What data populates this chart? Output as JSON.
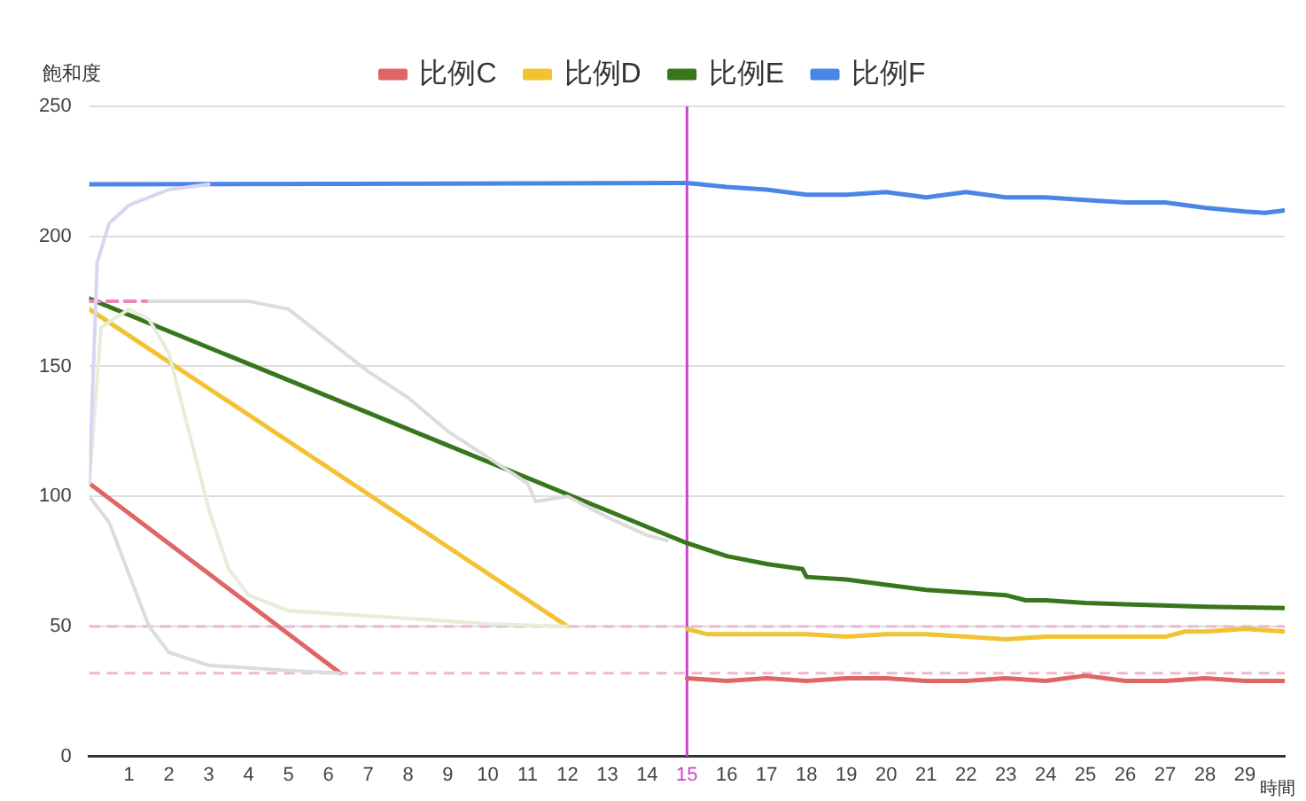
{
  "chart_data": {
    "type": "line",
    "ylabel": "飽和度",
    "xlabel": "時間",
    "xlim": [
      0,
      30
    ],
    "xticks": [
      1,
      2,
      3,
      4,
      5,
      6,
      7,
      8,
      9,
      10,
      11,
      12,
      13,
      14,
      15,
      16,
      17,
      18,
      19,
      20,
      21,
      22,
      23,
      24,
      25,
      26,
      27,
      28,
      29
    ],
    "ylim": [
      0,
      250
    ],
    "yticks": [
      0,
      50,
      100,
      150,
      200,
      250
    ],
    "grid": "y",
    "legend": "top",
    "marker": "none",
    "line_style": "solid",
    "ref_lines": [
      {
        "axis": "y",
        "value": 50,
        "color": "#e9b7cf",
        "line_style": "dashed"
      },
      {
        "axis": "y",
        "value": 32,
        "color": "#f0b8c8",
        "line_style": "dashed"
      },
      {
        "axis": "x",
        "value": 15,
        "color": "#cc44cc",
        "line_style": "solid"
      }
    ],
    "series": [
      {
        "color": "#d9d4f2",
        "x": [
          0,
          0.2,
          0.5,
          1,
          2,
          3
        ],
        "values": [
          105,
          190,
          205,
          212,
          218,
          220
        ]
      },
      {
        "color": "#dcdcdc",
        "x": [
          1.5,
          4,
          5,
          6,
          7,
          8,
          9,
          10,
          11,
          11.2,
          12,
          13,
          14,
          14.5
        ],
        "values": [
          175,
          175,
          172,
          160,
          148,
          138,
          125,
          115,
          105,
          98,
          100,
          92,
          85,
          83
        ]
      },
      {
        "color": "#e4eed9",
        "x": [
          0,
          0.3,
          1,
          1.5,
          2,
          2.5,
          3,
          3.5,
          4,
          5,
          6,
          8,
          10,
          12
        ],
        "values": [
          105,
          165,
          172,
          168,
          155,
          125,
          95,
          72,
          62,
          56,
          55,
          53,
          51,
          50
        ]
      },
      {
        "color": "#dcdcdc",
        "x": [
          0,
          0.5,
          1,
          1.5,
          2,
          3,
          5,
          6.3
        ],
        "values": [
          100,
          90,
          70,
          50,
          40,
          35,
          33,
          32
        ]
      },
      {
        "color": "#e986b8",
        "x": [
          0,
          1.5
        ],
        "values": [
          175,
          175
        ],
        "line_style": "dashed"
      },
      {
        "name": "比例C",
        "color": "#e06666",
        "x": [
          0,
          6.3,
          10,
          15,
          16,
          17,
          18,
          19,
          20,
          21,
          22,
          23,
          24,
          25,
          26,
          27,
          28,
          29,
          30
        ],
        "values": [
          105,
          32,
          null,
          30,
          29,
          30,
          29,
          30,
          30,
          29,
          29,
          30,
          29,
          31,
          29,
          29,
          30,
          29,
          29
        ]
      },
      {
        "name": "比例D",
        "color": "#f1c232",
        "x": [
          0,
          12,
          13.5,
          15,
          15.5,
          17,
          18,
          19,
          20,
          21,
          22,
          23,
          24,
          25,
          26,
          27,
          27.5,
          28,
          29,
          30
        ],
        "values": [
          172,
          50,
          null,
          49,
          47,
          47,
          47,
          46,
          47,
          47,
          46,
          45,
          46,
          46,
          46,
          46,
          48,
          48,
          49,
          48
        ]
      },
      {
        "name": "比例E",
        "color": "#38761d",
        "x": [
          0,
          15,
          16,
          17,
          17.9,
          18,
          19,
          20,
          21,
          22,
          23,
          23.5,
          24,
          25,
          26,
          28,
          30
        ],
        "values": [
          176,
          82,
          77,
          74,
          72,
          69,
          68,
          66,
          64,
          63,
          62,
          60,
          60,
          59,
          58.5,
          57.5,
          57
        ]
      },
      {
        "name": "比例F",
        "color": "#4a86e8",
        "x": [
          0,
          15,
          16,
          17,
          18,
          19,
          20,
          21,
          22,
          23,
          24,
          25,
          26,
          27,
          28,
          29,
          29.5,
          30
        ],
        "values": [
          220,
          220.5,
          219,
          218,
          216,
          216,
          217,
          215,
          217,
          215,
          215,
          214,
          213,
          213,
          211,
          209.5,
          209,
          210
        ]
      }
    ]
  }
}
